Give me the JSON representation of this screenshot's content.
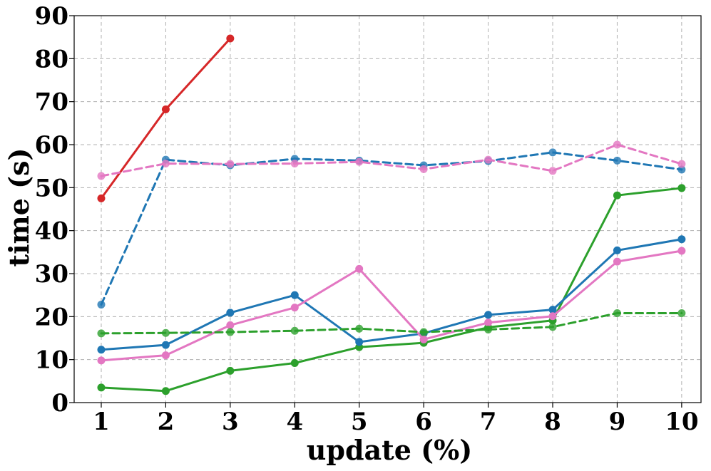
{
  "chart_data": {
    "type": "line",
    "title": "",
    "xlabel": "update (%)",
    "ylabel": "time (s)",
    "x": [
      1,
      2,
      3,
      4,
      5,
      6,
      7,
      8,
      9,
      10
    ],
    "xlim": [
      0.58,
      10.3
    ],
    "ylim": [
      0,
      90
    ],
    "xticks": [
      1,
      2,
      3,
      4,
      5,
      6,
      7,
      8,
      9,
      10
    ],
    "yticks": [
      0,
      10,
      20,
      30,
      40,
      50,
      60,
      70,
      80,
      90
    ],
    "grid": true,
    "legend": "none",
    "series": [
      {
        "color": "#d62728",
        "style": "solid",
        "values": [
          47.5,
          68.2,
          84.7,
          null,
          null,
          null,
          null,
          null,
          null,
          null
        ]
      },
      {
        "color": "#1f77b4",
        "style": "dashed",
        "values": [
          22.8,
          56.5,
          55.2,
          56.7,
          56.3,
          55.2,
          56.2,
          58.2,
          56.3,
          54.2
        ]
      },
      {
        "color": "#e377c2",
        "style": "dashed",
        "values": [
          52.7,
          55.6,
          55.5,
          55.6,
          56.0,
          54.3,
          56.5,
          53.9,
          60.0,
          55.5
        ]
      },
      {
        "color": "#2ca02c",
        "style": "solid",
        "values": [
          3.5,
          2.7,
          7.4,
          9.2,
          12.9,
          13.9,
          17.5,
          19.1,
          48.2,
          49.9
        ]
      },
      {
        "color": "#1f77b4",
        "style": "solid",
        "values": [
          12.3,
          13.4,
          20.9,
          25.0,
          14.1,
          16.1,
          20.4,
          21.6,
          35.4,
          38.0
        ]
      },
      {
        "color": "#e377c2",
        "style": "solid",
        "values": [
          9.8,
          11.0,
          18.0,
          22.1,
          31.1,
          14.7,
          18.6,
          20.1,
          32.8,
          35.3
        ]
      },
      {
        "color": "#2ca02c",
        "style": "dashed",
        "values": [
          16.1,
          16.2,
          16.4,
          16.7,
          17.2,
          16.4,
          17.0,
          17.6,
          20.8,
          20.8
        ]
      }
    ]
  }
}
